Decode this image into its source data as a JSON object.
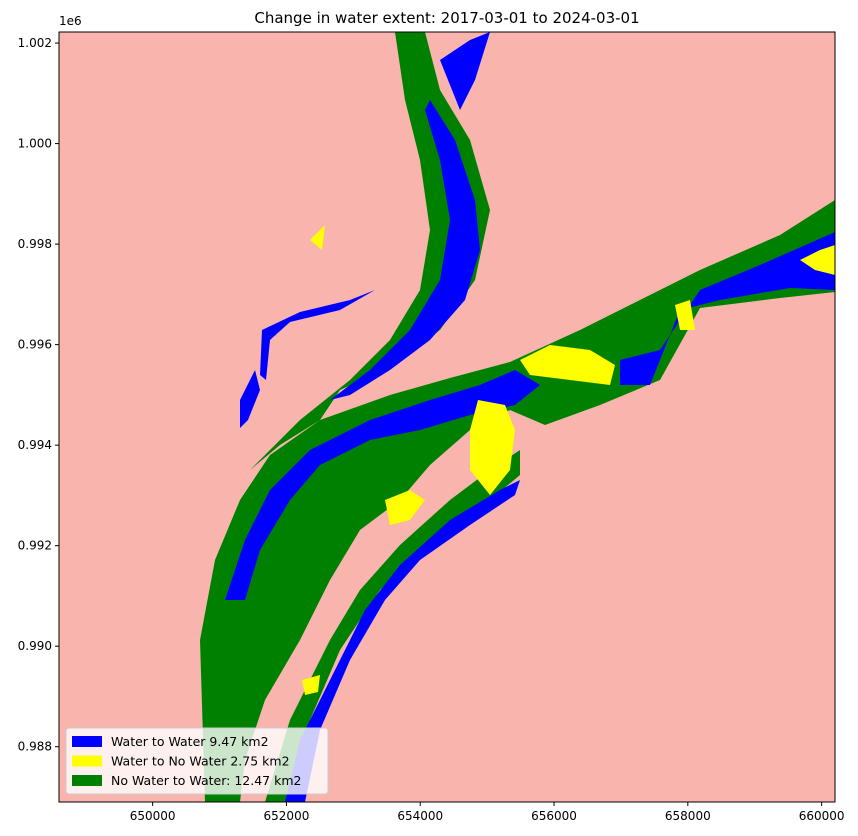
{
  "chart_data": {
    "type": "heatmap",
    "title": "Change in water extent: 2017-03-01 to 2024-03-01",
    "y_offset_label": "1e6",
    "xlim": [
      648600,
      660200
    ],
    "ylim": [
      0.9869,
      1.00222
    ],
    "x_ticks": [
      {
        "value": 650000,
        "label": "650000"
      },
      {
        "value": 652000,
        "label": "652000"
      },
      {
        "value": 654000,
        "label": "654000"
      },
      {
        "value": 656000,
        "label": "656000"
      },
      {
        "value": 658000,
        "label": "658000"
      },
      {
        "value": 660000,
        "label": "660000"
      }
    ],
    "y_ticks": [
      {
        "value": 0.988,
        "label": "0.988"
      },
      {
        "value": 0.99,
        "label": "0.990"
      },
      {
        "value": 0.992,
        "label": "0.992"
      },
      {
        "value": 0.994,
        "label": "0.994"
      },
      {
        "value": 0.996,
        "label": "0.996"
      },
      {
        "value": 0.998,
        "label": "0.998"
      },
      {
        "value": 1.0,
        "label": "1.000"
      },
      {
        "value": 1.002,
        "label": "1.002"
      }
    ],
    "background_color": "#f9b4ae",
    "legend_position": "lower-left",
    "classes": [
      {
        "label": "Water to Water 9.47 km2",
        "color": "#0000ff"
      },
      {
        "label": "Water to No Water 2.75 km2",
        "color": "#ffff00"
      },
      {
        "label": "No Water to Water: 12.47 km2",
        "color": "#008000"
      }
    ]
  }
}
